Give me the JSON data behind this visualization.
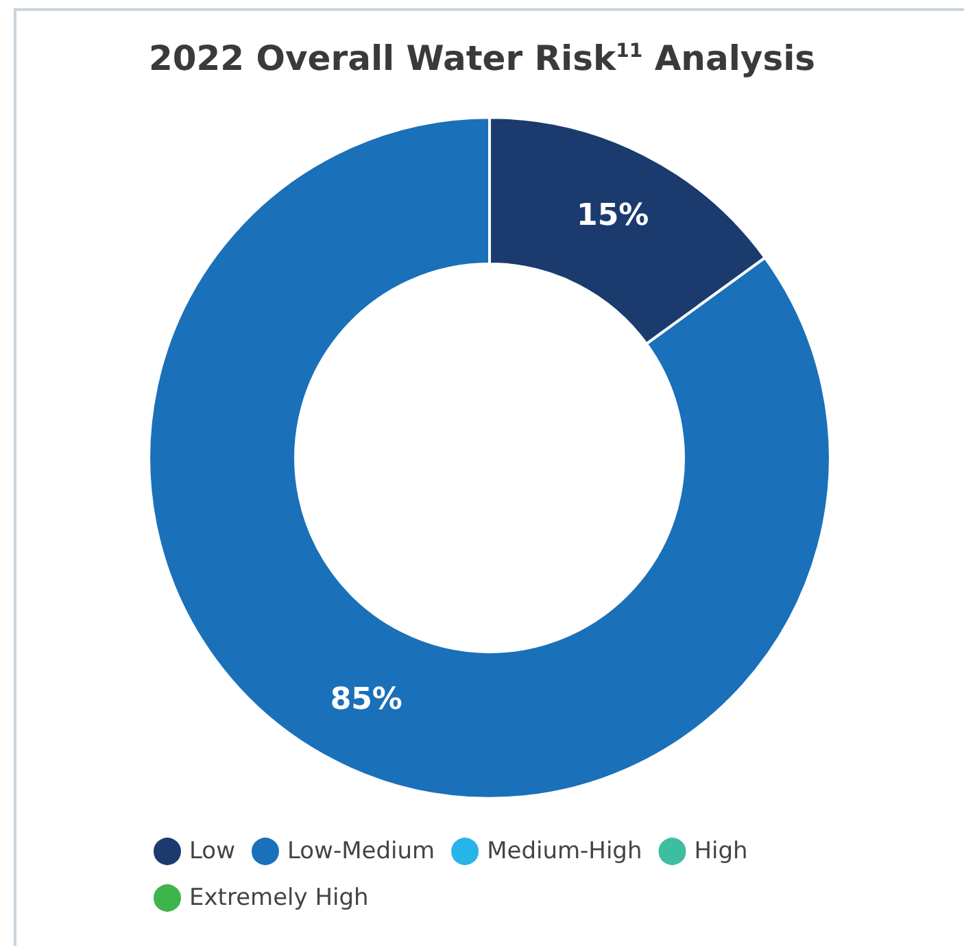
{
  "chart_data": {
    "type": "donut",
    "title": "2022 Overall Water Risk$^{11}$ Analysis",
    "categories": [
      "Low",
      "Low-Medium",
      "Medium-High",
      "High",
      "Extremely High"
    ],
    "values": [
      15,
      85,
      0,
      0,
      0
    ],
    "colors": [
      "#1b3b6f",
      "#1a70b9",
      "#27b4e9",
      "#3dbea1",
      "#3db54b"
    ],
    "value_labels": [
      "15%",
      "85%",
      null,
      null,
      null
    ],
    "legend": "bottom"
  }
}
